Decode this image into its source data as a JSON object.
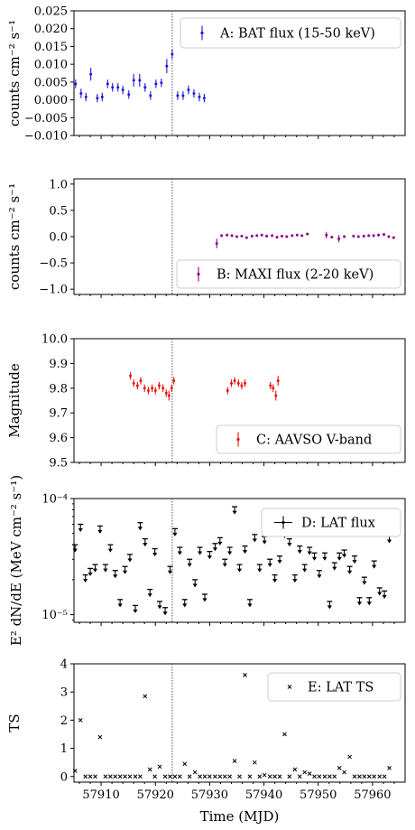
{
  "figure": {
    "xlabel": "Time (MJD)",
    "xlim": [
      57905,
      57966
    ],
    "xticks": [
      57910,
      57920,
      57930,
      57940,
      57950,
      57960
    ],
    "marker_line_x": 57923.1
  },
  "chart_data": [
    {
      "id": "A",
      "type": "scatter",
      "error_bars": true,
      "ylabel": "counts cm⁻² s⁻¹",
      "ylim": [
        -0.01,
        0.025
      ],
      "yticks": [
        -0.01,
        -0.005,
        0.0,
        0.005,
        0.01,
        0.015,
        0.02,
        0.025
      ],
      "ytick_labels": [
        "−0.010",
        "−0.005",
        "0.000",
        "0.005",
        "0.010",
        "0.015",
        "0.020",
        "0.025"
      ],
      "legend": {
        "label": "A: BAT flux (15-50 keV)",
        "position": "top-right",
        "marker": "errorbar"
      },
      "color": "#1a1adb",
      "series": [
        {
          "name": "A: BAT flux (15-50 keV)",
          "x": [
            57905.3,
            57906.3,
            57907.2,
            57908.1,
            57909.3,
            57910.2,
            57911.2,
            57912.1,
            57913.1,
            57914.0,
            57915.1,
            57916.0,
            57917.1,
            57918.1,
            57919.1,
            57920.1,
            57921.1,
            57922.1,
            57923.1,
            57924.1,
            57925.1,
            57926.1,
            57927.1,
            57928.1,
            57929.0
          ],
          "y": [
            0.0045,
            0.0018,
            0.0008,
            0.0072,
            0.0005,
            0.0008,
            0.0045,
            0.0035,
            0.0035,
            0.0028,
            0.0015,
            0.0055,
            0.0055,
            0.0035,
            0.0012,
            0.0045,
            0.0048,
            0.0095,
            0.0128,
            0.0012,
            0.0012,
            0.0028,
            0.0018,
            0.0008,
            0.0005
          ],
          "err": [
            0.0012,
            0.0013,
            0.0012,
            0.0018,
            0.0012,
            0.0012,
            0.0012,
            0.0012,
            0.0012,
            0.0012,
            0.0012,
            0.0018,
            0.0018,
            0.0012,
            0.0012,
            0.0012,
            0.0012,
            0.002,
            0.0013,
            0.0012,
            0.0012,
            0.0012,
            0.0012,
            0.0012,
            0.0012
          ]
        }
      ]
    },
    {
      "id": "B",
      "type": "scatter",
      "error_bars": true,
      "ylabel": "counts cm⁻² s⁻¹",
      "ylim": [
        -1.1,
        1.1
      ],
      "yticks": [
        -1.0,
        -0.5,
        0.0,
        0.5,
        1.0
      ],
      "ytick_labels": [
        "−1.0",
        "−0.5",
        "0.0",
        "0.5",
        "1.0"
      ],
      "legend": {
        "label": "B: MAXI flux (2-20 keV)",
        "position": "bottom-right",
        "marker": "errorbar"
      },
      "color": "#8b008b",
      "series": [
        {
          "name": "B: MAXI flux (2-20 keV)",
          "x": [
            57931.3,
            57932.2,
            57933.2,
            57934.1,
            57935.0,
            57935.9,
            57936.8,
            57937.8,
            57938.7,
            57939.6,
            57940.5,
            57941.5,
            57942.4,
            57943.3,
            57944.2,
            57945.2,
            57946.1,
            57947.0,
            57948.0,
            57951.5,
            57952.5,
            57953.8,
            57954.8,
            57956.5,
            57957.4,
            57958.4,
            57959.3,
            57960.2,
            57961.1,
            57962.1,
            57963.0,
            57963.9
          ],
          "y": [
            -0.13,
            0.02,
            0.03,
            0.02,
            0.0,
            0.01,
            -0.02,
            0.01,
            0.02,
            0.03,
            0.01,
            0.02,
            -0.01,
            0.01,
            0.0,
            0.02,
            0.03,
            0.02,
            0.05,
            0.03,
            -0.01,
            -0.04,
            0.0,
            0.01,
            0.0,
            0.01,
            0.02,
            0.02,
            0.03,
            0.04,
            0.0,
            -0.02
          ],
          "err": [
            0.09,
            0.025,
            0.025,
            0.025,
            0.025,
            0.025,
            0.025,
            0.025,
            0.025,
            0.025,
            0.025,
            0.025,
            0.025,
            0.025,
            0.025,
            0.025,
            0.025,
            0.025,
            0.025,
            0.06,
            0.025,
            0.07,
            0.025,
            0.025,
            0.025,
            0.025,
            0.025,
            0.025,
            0.025,
            0.025,
            0.025,
            0.025
          ]
        }
      ]
    },
    {
      "id": "C",
      "type": "scatter",
      "error_bars": true,
      "ylabel": "Magnitude",
      "ylim": [
        9.5,
        10.0
      ],
      "yticks": [
        9.5,
        9.6,
        9.7,
        9.8,
        9.9,
        10.0
      ],
      "ytick_labels": [
        "9.5",
        "9.6",
        "9.7",
        "9.8",
        "9.9",
        "10.0"
      ],
      "legend": {
        "label": "C: AAVSO V-band",
        "position": "bottom-right",
        "marker": "errorbar"
      },
      "color": "#ee1111",
      "series": [
        {
          "name": "C: AAVSO V-band",
          "x": [
            57915.4,
            57916.0,
            57916.7,
            57917.3,
            57918.0,
            57918.7,
            57919.4,
            57920.0,
            57920.7,
            57921.4,
            57922.0,
            57922.5,
            57923.0,
            57923.4,
            57933.3,
            57934.0,
            57934.6,
            57935.3,
            57935.9,
            57936.5,
            57941.2,
            57941.7,
            57942.2,
            57942.6
          ],
          "y": [
            9.85,
            9.82,
            9.81,
            9.83,
            9.8,
            9.79,
            9.8,
            9.79,
            9.81,
            9.8,
            9.78,
            9.77,
            9.8,
            9.83,
            9.79,
            9.82,
            9.83,
            9.82,
            9.81,
            9.82,
            9.81,
            9.8,
            9.77,
            9.83
          ],
          "err": [
            0.015,
            0.015,
            0.015,
            0.015,
            0.015,
            0.015,
            0.015,
            0.015,
            0.015,
            0.015,
            0.015,
            0.02,
            0.015,
            0.015,
            0.015,
            0.015,
            0.015,
            0.015,
            0.015,
            0.015,
            0.015,
            0.015,
            0.02,
            0.02
          ]
        }
      ]
    },
    {
      "id": "D",
      "type": "scatter",
      "marker": "upper-limit-arrow",
      "ylabel": "E² dN/dE (MeV cm⁻² s⁻¹)",
      "ylog": true,
      "ylim": [
        8.6e-06,
        0.0001
      ],
      "yticks": [
        1e-05,
        0.0001
      ],
      "ytick_labels": [
        "10⁻⁵",
        "10⁻⁴"
      ],
      "legend": {
        "label": "D: LAT flux",
        "position": "top-right",
        "marker": "cross"
      },
      "color": "#000000",
      "series": [
        {
          "name": "D: LAT flux",
          "x": [
            57905.2,
            57906.2,
            57907.1,
            57908.0,
            57908.9,
            57909.8,
            57910.8,
            57911.7,
            57912.6,
            57913.5,
            57914.4,
            57915.3,
            57916.3,
            57917.2,
            57918.1,
            57919.0,
            57919.9,
            57920.8,
            57921.8,
            57922.7,
            57923.6,
            57924.5,
            57925.4,
            57926.3,
            57927.3,
            57928.2,
            57929.1,
            57930.0,
            57931.0,
            57931.9,
            57932.8,
            57933.7,
            57934.6,
            57935.5,
            57936.5,
            57937.4,
            57938.3,
            57939.2,
            57940.1,
            57941.1,
            57942.0,
            57942.9,
            57943.8,
            57944.7,
            57945.7,
            57946.6,
            57947.5,
            57948.4,
            57949.3,
            57950.2,
            57951.2,
            57952.1,
            57953.0,
            57953.9,
            57954.8,
            57955.8,
            57956.7,
            57957.6,
            57958.5,
            57959.4,
            57960.3,
            57961.3,
            57962.2,
            57963.1
          ],
          "y": [
            4e-05,
            6e-05,
            2.2e-05,
            2.5e-05,
            2.7e-05,
            5.8e-05,
            2.7e-05,
            4e-05,
            2.4e-05,
            1.35e-05,
            2.6e-05,
            3.3e-05,
            1.2e-05,
            6.2e-05,
            4.5e-05,
            1.65e-05,
            3.7e-05,
            1.3e-05,
            1.15e-05,
            2.6e-05,
            5.5e-05,
            3.8e-05,
            1.35e-05,
            3e-05,
            2e-05,
            3.8e-05,
            1.5e-05,
            3.5e-05,
            4.1e-05,
            4.6e-05,
            3e-05,
            3.8e-05,
            8.5e-05,
            2.7e-05,
            3.9e-05,
            1.35e-05,
            4.9e-05,
            2.7e-05,
            4.7e-05,
            3e-05,
            2.2e-05,
            3.2e-05,
            5.3e-05,
            4.5e-05,
            2.2e-05,
            3.9e-05,
            2.7e-05,
            3.8e-05,
            3.4e-05,
            2.4e-05,
            3.4e-05,
            1.3e-05,
            2.8e-05,
            3.4e-05,
            3.6e-05,
            2.6e-05,
            3.2e-05,
            1.4e-05,
            2.1e-05,
            1.4e-05,
            2.9e-05,
            1.7e-05,
            1.6e-05,
            4.8e-05
          ]
        }
      ]
    },
    {
      "id": "E",
      "type": "scatter",
      "marker": "x",
      "ylabel": "TS",
      "ylim": [
        -0.2,
        4.0
      ],
      "yticks": [
        0,
        1,
        2,
        3,
        4
      ],
      "ytick_labels": [
        "0",
        "1",
        "2",
        "3",
        "4"
      ],
      "legend": {
        "label": "E: LAT TS",
        "position": "top-right",
        "marker": "x"
      },
      "color": "#000000",
      "series": [
        {
          "name": "E: LAT TS",
          "x": [
            57905.2,
            57906.2,
            57907.1,
            57908.0,
            57908.9,
            57909.8,
            57910.8,
            57911.7,
            57912.6,
            57913.5,
            57914.4,
            57915.3,
            57916.3,
            57917.2,
            57918.1,
            57919.0,
            57919.9,
            57920.8,
            57921.8,
            57922.7,
            57923.6,
            57924.5,
            57925.4,
            57926.3,
            57927.3,
            57928.2,
            57929.1,
            57930.0,
            57931.0,
            57931.9,
            57932.8,
            57933.7,
            57934.6,
            57935.5,
            57936.5,
            57937.4,
            57938.3,
            57939.2,
            57940.1,
            57941.1,
            57942.0,
            57942.9,
            57943.8,
            57944.7,
            57945.7,
            57946.6,
            57947.5,
            57948.4,
            57949.3,
            57950.2,
            57951.2,
            57952.1,
            57953.0,
            57953.9,
            57954.8,
            57955.8,
            57956.7,
            57957.6,
            57958.5,
            57959.4,
            57960.3,
            57961.3,
            57962.2,
            57963.1
          ],
          "y": [
            0.2,
            2.0,
            0.0,
            0.0,
            0.0,
            1.4,
            0.0,
            0.0,
            0.0,
            0.0,
            0.0,
            0.0,
            0.0,
            0.0,
            2.85,
            0.25,
            0.0,
            0.35,
            0.0,
            0.0,
            0.0,
            0.0,
            0.45,
            0.0,
            0.15,
            0.0,
            0.0,
            0.0,
            0.0,
            0.0,
            0.0,
            0.0,
            0.55,
            0.0,
            3.6,
            0.0,
            0.5,
            0.0,
            0.05,
            0.0,
            0.0,
            0.0,
            1.5,
            0.0,
            0.25,
            0.0,
            0.15,
            0.1,
            0.0,
            0.0,
            0.0,
            0.0,
            0.0,
            0.3,
            0.15,
            0.7,
            0.0,
            0.0,
            0.0,
            0.0,
            0.0,
            0.0,
            0.0,
            0.3
          ]
        }
      ]
    }
  ]
}
